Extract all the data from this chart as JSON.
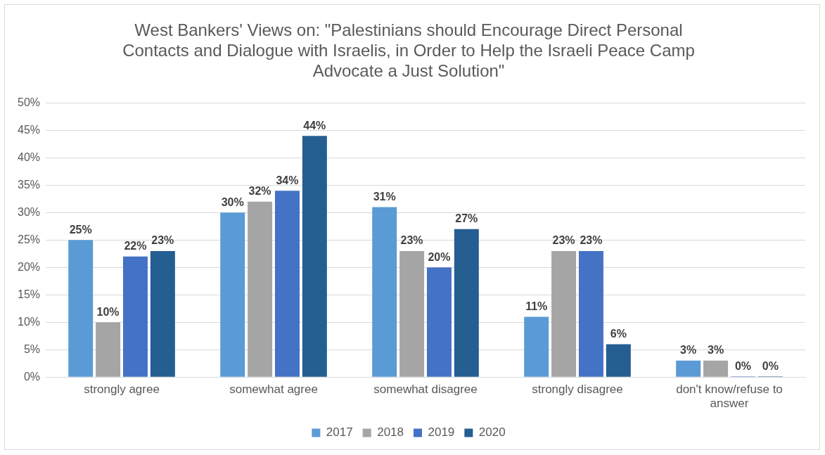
{
  "chart_data": {
    "type": "bar",
    "title": "West Bankers' Views on: \"Palestinians should Encourage Direct Personal Contacts and Dialogue with Israelis, in Order to Help the Israeli Peace Camp Advocate a Just Solution\"",
    "categories": [
      "strongly agree",
      "somewhat agree",
      "somewhat disagree",
      "strongly disagree",
      "don't know/refuse to answer"
    ],
    "series": [
      {
        "name": "2017",
        "color": "#5b9bd5",
        "values": [
          25,
          30,
          31,
          11,
          3
        ],
        "value_labels": [
          "25%",
          "30%",
          "31%",
          "11%",
          "3%"
        ]
      },
      {
        "name": "2018",
        "color": "#a5a5a5",
        "values": [
          10,
          32,
          23,
          23,
          3
        ],
        "value_labels": [
          "10%",
          "32%",
          "23%",
          "23%",
          "3%"
        ]
      },
      {
        "name": "2019",
        "color": "#4472c4",
        "values": [
          22,
          34,
          20,
          23,
          0
        ],
        "value_labels": [
          "22%",
          "34%",
          "20%",
          "23%",
          "0%"
        ]
      },
      {
        "name": "2020",
        "color": "#255e91",
        "values": [
          23,
          44,
          27,
          6,
          0
        ],
        "value_labels": [
          "23%",
          "44%",
          "27%",
          "6%",
          "0%"
        ]
      }
    ],
    "ylim": [
      0,
      50
    ],
    "yticks": [
      {
        "value": 0,
        "label": "0%"
      },
      {
        "value": 5,
        "label": "5%"
      },
      {
        "value": 10,
        "label": "10%"
      },
      {
        "value": 15,
        "label": "15%"
      },
      {
        "value": 20,
        "label": "20%"
      },
      {
        "value": 25,
        "label": "25%"
      },
      {
        "value": 30,
        "label": "30%"
      },
      {
        "value": 35,
        "label": "35%"
      },
      {
        "value": 40,
        "label": "40%"
      },
      {
        "value": 45,
        "label": "45%"
      },
      {
        "value": 50,
        "label": "50%"
      }
    ],
    "grid": "y",
    "legend": "bottom"
  }
}
